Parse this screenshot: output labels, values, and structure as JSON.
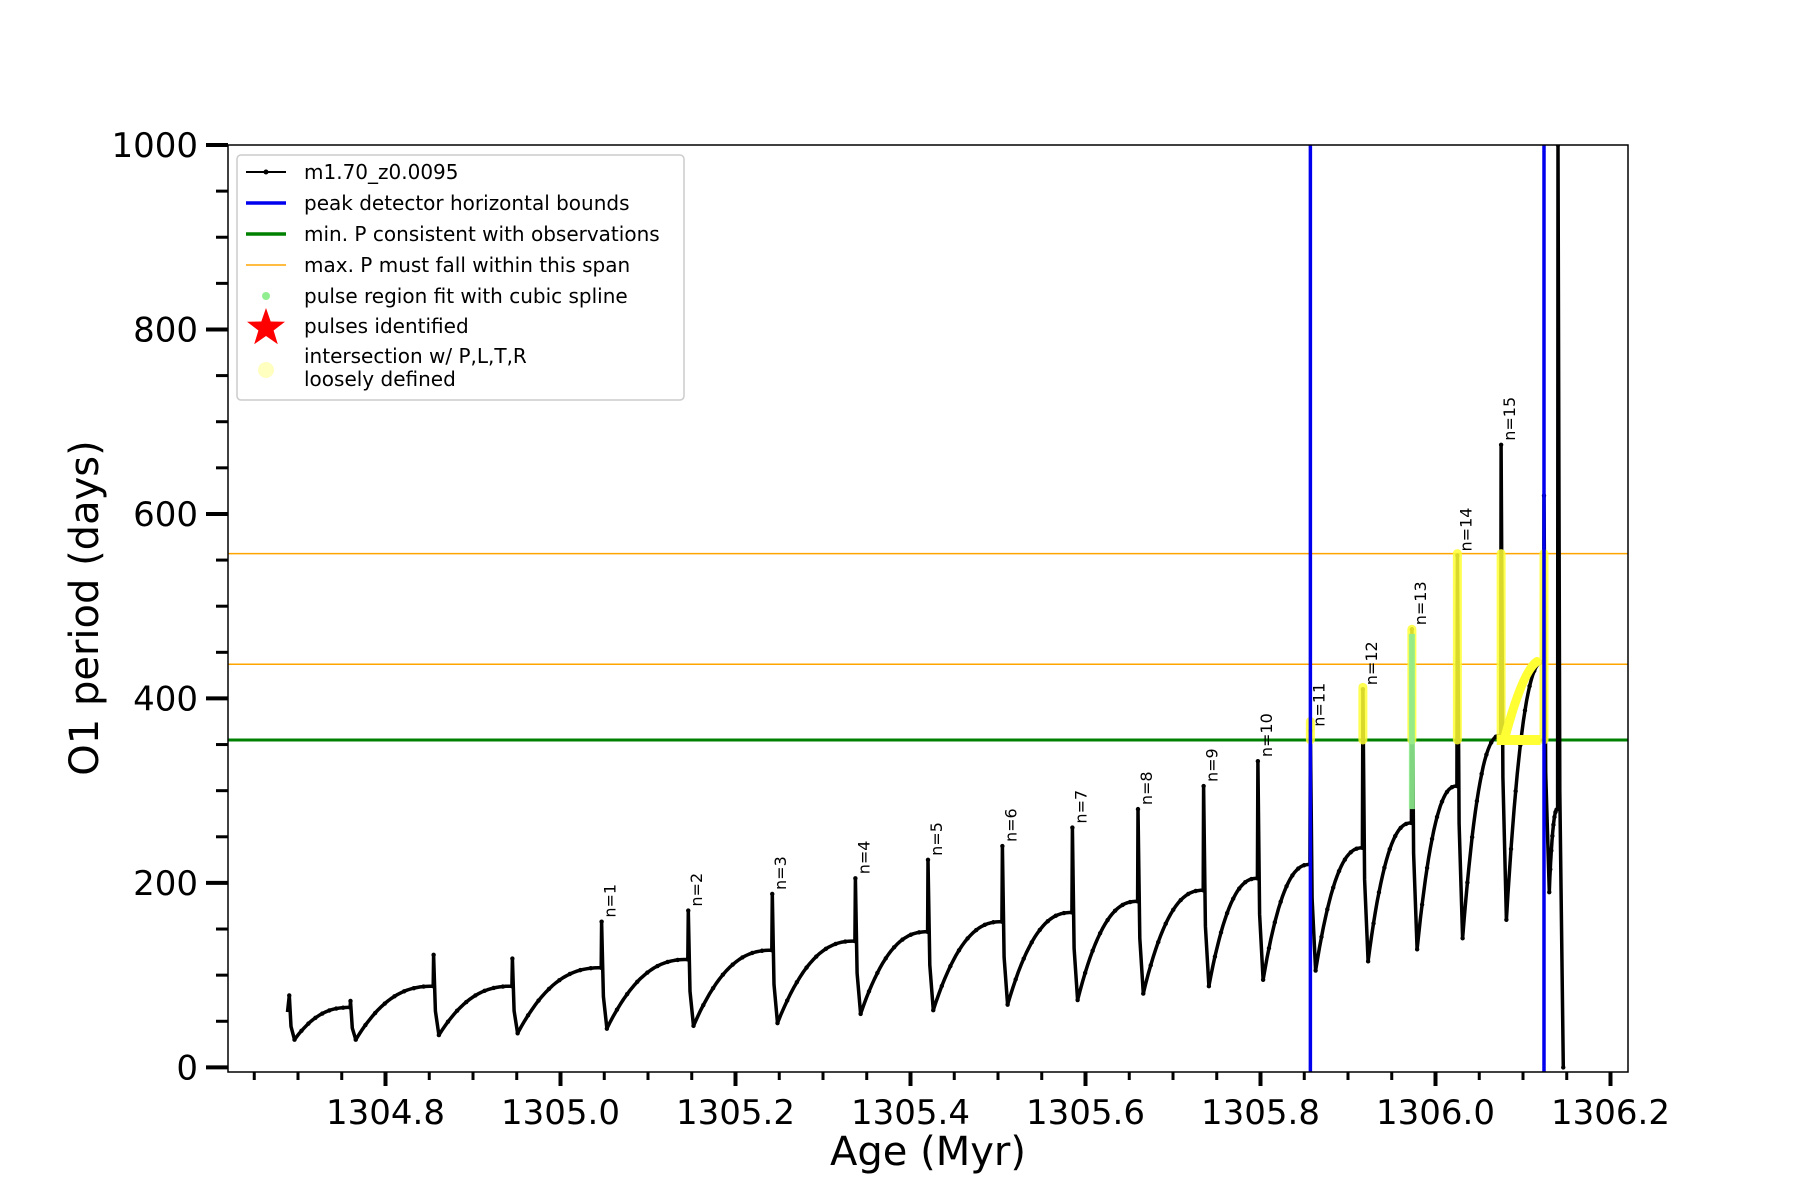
{
  "chart_data": {
    "type": "line",
    "xlabel": "Age (Myr)",
    "ylabel": "O1 period (days)",
    "xlim": [
      1304.62,
      1306.22
    ],
    "ylim": [
      -5,
      1000
    ],
    "x_ticks": [
      1304.8,
      1305.0,
      1305.2,
      1305.4,
      1305.6,
      1305.8,
      1306.0,
      1306.2
    ],
    "y_ticks": [
      0,
      200,
      400,
      600,
      800,
      1000
    ],
    "legend": {
      "placement": "upper-left",
      "entries": [
        {
          "label": "m1.70_z0.0095",
          "style": "line-dot",
          "color": "#000000"
        },
        {
          "label": "peak detector horizontal bounds",
          "style": "line",
          "color": "#0000ee"
        },
        {
          "label": "min. P consistent with observations",
          "style": "line",
          "color": "#008000"
        },
        {
          "label": "max. P must fall within this span",
          "style": "thin-line",
          "color": "#ffa500"
        },
        {
          "label": "pulses identified",
          "style": "star",
          "color": "#ff0000"
        },
        {
          "label": "pulse region fit with cubic spline",
          "style": "dot",
          "color": "#90ee90"
        },
        {
          "label": "intersection w/ P,L,T,R\nloosely defined",
          "style": "circle",
          "color": "#ffffc0"
        }
      ]
    },
    "vertical_lines": [
      {
        "name": "peak detector horizontal bounds",
        "x": 1305.857,
        "color": "#0000ee"
      },
      {
        "name": "peak detector horizontal bounds",
        "x": 1306.124,
        "color": "#0000ee"
      }
    ],
    "horizontal_lines": [
      {
        "name": "min. P consistent with observations",
        "y": 355,
        "color": "#008000"
      },
      {
        "name": "max. P must fall within this span",
        "y": 437,
        "color": "#ffa500"
      },
      {
        "name": "max. P must fall within this span",
        "y": 557,
        "color": "#ffa500"
      }
    ],
    "pulses": [
      {
        "t": 1304.69,
        "peak": 78,
        "min": 30,
        "pre": null,
        "pre_x": 1304.66
      },
      {
        "t": 1304.76,
        "peak": 72,
        "min": 30,
        "pre": 65
      },
      {
        "t": 1304.855,
        "peak": 122,
        "min": 35,
        "pre": 88
      },
      {
        "t": 1304.945,
        "peak": 118,
        "min": 37,
        "pre": 88
      },
      {
        "t": 1305.047,
        "peak": 158,
        "min": 42,
        "pre": 108,
        "label": "n=1"
      },
      {
        "t": 1305.146,
        "peak": 170,
        "min": 45,
        "pre": 117,
        "label": "n=2"
      },
      {
        "t": 1305.242,
        "peak": 188,
        "min": 48,
        "pre": 127,
        "label": "n=3"
      },
      {
        "t": 1305.337,
        "peak": 205,
        "min": 58,
        "pre": 137,
        "label": "n=4"
      },
      {
        "t": 1305.42,
        "peak": 225,
        "min": 62,
        "pre": 147,
        "label": "n=5"
      },
      {
        "t": 1305.505,
        "peak": 240,
        "min": 68,
        "pre": 158,
        "label": "n=6"
      },
      {
        "t": 1305.585,
        "peak": 260,
        "min": 73,
        "pre": 168,
        "label": "n=7"
      },
      {
        "t": 1305.66,
        "peak": 280,
        "min": 80,
        "pre": 180,
        "label": "n=8"
      },
      {
        "t": 1305.735,
        "peak": 305,
        "min": 88,
        "pre": 192,
        "label": "n=9"
      },
      {
        "t": 1305.797,
        "peak": 332,
        "min": 95,
        "pre": 205,
        "label": "n=10"
      },
      {
        "t": 1305.857,
        "peak": 365,
        "min": 105,
        "pre": 220,
        "label": "n=11"
      },
      {
        "t": 1305.917,
        "peak": 410,
        "min": 115,
        "pre": 238,
        "label": "n=12"
      },
      {
        "t": 1305.973,
        "peak": 475,
        "min": 128,
        "pre": 265,
        "label": "n=13"
      },
      {
        "t": 1306.025,
        "peak": 555,
        "min": 140,
        "pre": 305,
        "label": "n=14"
      },
      {
        "t": 1306.075,
        "peak": 675,
        "min": 160,
        "pre": 360,
        "label": "n=15"
      },
      {
        "t": 1306.124,
        "peak": 620,
        "min": 190,
        "pre": 440
      },
      {
        "t": 1306.14,
        "peak": 1000,
        "min": 0,
        "pre": 280
      }
    ],
    "spline_regions": [
      {
        "x": 1305.973,
        "y_min": 280,
        "y_max": 470
      }
    ],
    "loosely_defined_regions": [
      {
        "x": 1305.857,
        "y_min": 355,
        "y_max": 375
      },
      {
        "x": 1305.917,
        "y_min": 355,
        "y_max": 412
      },
      {
        "x": 1305.973,
        "y_min": 355,
        "y_max": 475
      },
      {
        "x": 1306.025,
        "y_min": 355,
        "y_max": 557
      },
      {
        "x": 1306.075,
        "y_min": 355,
        "y_max": 557
      },
      {
        "x": 1306.124,
        "y_min": 355,
        "y_max": 557
      }
    ]
  }
}
